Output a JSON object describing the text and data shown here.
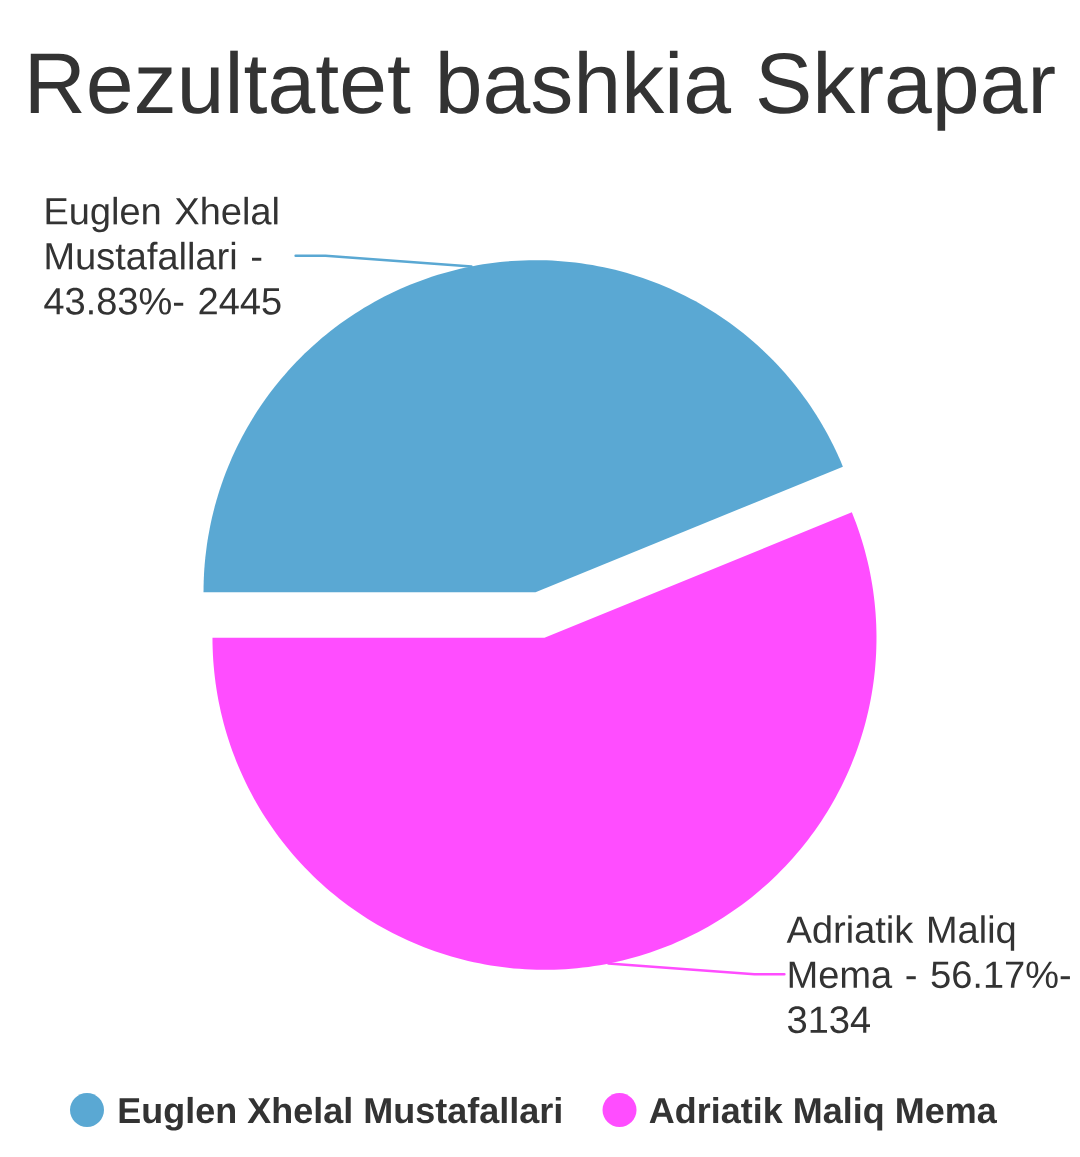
{
  "chart_data": {
    "type": "pie",
    "title": "Rezultatet bashkia Skrapar",
    "categories": [
      "Euglen Xhelal Mustafallari",
      "Adriatik Maliq Mema"
    ],
    "values": [
      43.83,
      56.17
    ],
    "colors": [
      "#5aa8d3",
      "#ff4dff"
    ],
    "annotations": [
      "Euglen Xhelal Mustafallari - 43.83%- 2445",
      "Adriatik Maliq Mema - 56.17%- 3134"
    ],
    "legend": "bottom"
  }
}
